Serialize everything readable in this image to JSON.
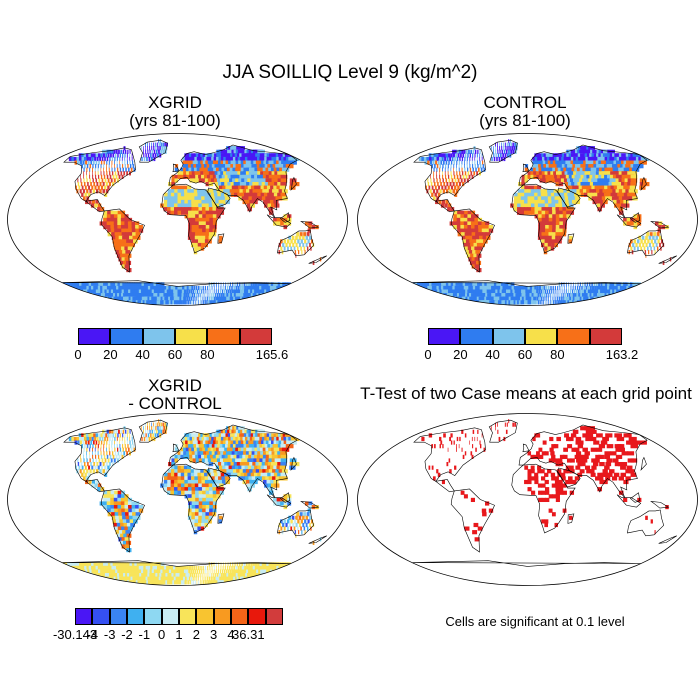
{
  "title": "JJA SOILLIQ Level 9 (kg/m^2)",
  "panels": {
    "xgrid": {
      "title_line1": "XGRID",
      "title_line2": "(yrs 81-100)"
    },
    "control": {
      "title_line1": "CONTROL",
      "title_line2": "(yrs 81-100)"
    },
    "diff": {
      "title_line1": "XGRID",
      "title_line2": "- CONTROL"
    },
    "ttest": {
      "title": "T-Test of two Case means at each grid point",
      "note": "Cells are significant at 0.1 level"
    }
  },
  "colorbars": {
    "xgrid": {
      "colors": [
        "#4a16f5",
        "#2f7cf0",
        "#7ec4ec",
        "#f7e04a",
        "#f77018",
        "#d33a3a"
      ],
      "labels": [
        "0",
        "20",
        "40",
        "60",
        "80",
        "165.6"
      ]
    },
    "control": {
      "colors": [
        "#4a16f5",
        "#2f7cf0",
        "#7ec4ec",
        "#f7e04a",
        "#f77018",
        "#d33a3a"
      ],
      "labels": [
        "0",
        "20",
        "40",
        "60",
        "80",
        "163.2"
      ]
    },
    "diff": {
      "colors": [
        "#4a16f5",
        "#3550f2",
        "#3a84f2",
        "#3fb0f0",
        "#8ed8f2",
        "#c8ecf3",
        "#f8e45a",
        "#f8c430",
        "#f89a20",
        "#f46418",
        "#e8180c",
        "#d23c3c"
      ],
      "labels": [
        "-30.143",
        "-4",
        "-3",
        "-2",
        "-1",
        "0",
        "1",
        "2",
        "3",
        "4",
        "36.31"
      ]
    }
  },
  "legend_colors": {
    "significant": "#e8181c",
    "coast": "#000000"
  }
}
